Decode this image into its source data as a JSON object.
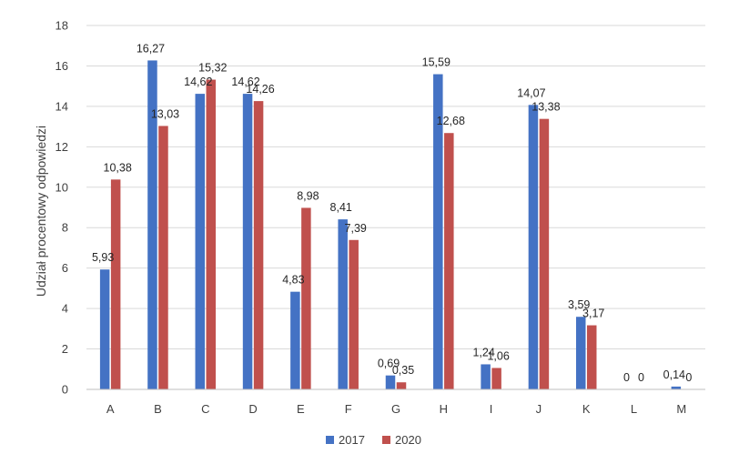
{
  "chart_data": {
    "type": "bar",
    "ylabel": "Udział procentowy odpowiedzi",
    "xlabel": "",
    "ylim": [
      0,
      18
    ],
    "yticks": [
      "0",
      "2",
      "4",
      "6",
      "8",
      "10",
      "12",
      "14",
      "16",
      "18"
    ],
    "grid": "horizontal",
    "legend_position": "bottom",
    "categories": [
      "A",
      "B",
      "C",
      "D",
      "E",
      "F",
      "G",
      "H",
      "I",
      "J",
      "K",
      "L",
      "M"
    ],
    "series": [
      {
        "name": "2017",
        "color": "#4472c4",
        "values": [
          5.93,
          16.27,
          14.62,
          14.62,
          4.83,
          8.41,
          0.69,
          15.59,
          1.24,
          14.07,
          3.59,
          0,
          0.14
        ],
        "labels": [
          "5,93",
          "16,27",
          "14,62",
          "14,62",
          "4,83",
          "8,41",
          "0,69",
          "15,59",
          "1,24",
          "14,07",
          "3,59",
          "0",
          "0,14"
        ]
      },
      {
        "name": "2020",
        "color": "#c0504d",
        "values": [
          10.38,
          13.03,
          15.32,
          14.26,
          8.98,
          7.39,
          0.35,
          12.68,
          1.06,
          13.38,
          3.17,
          0,
          0
        ],
        "labels": [
          "10,38",
          "13,03",
          "15,32",
          "14,26",
          "8,98",
          "7,39",
          "0,35",
          "12,68",
          "1,06",
          "13,38",
          "3,17",
          "0",
          "0"
        ]
      }
    ]
  }
}
